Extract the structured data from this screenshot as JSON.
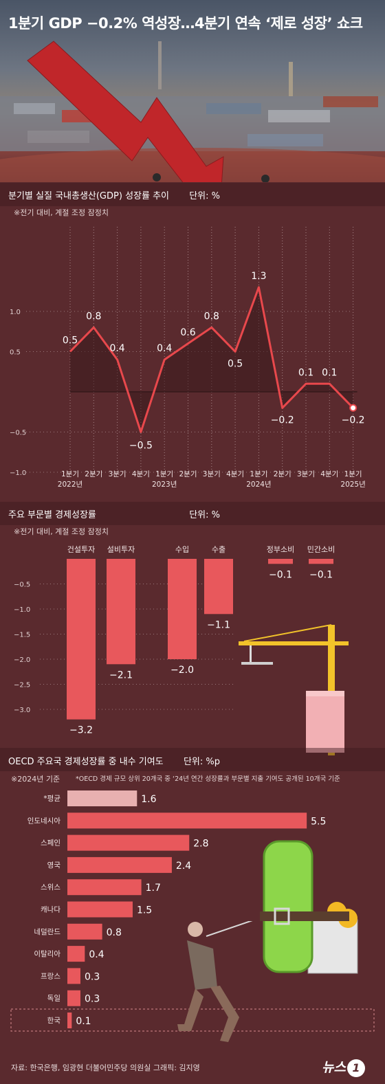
{
  "title": "1분기 GDP −0.2% 역성장…4분기 연속 ‘제로 성장’ 쇼크",
  "colors": {
    "background": "#5a2a2e",
    "line": "#e8484c",
    "bar": "#e8585c",
    "bar_highlight": "#e8b0b0",
    "arrow": "#c0262a"
  },
  "icons": [
    "falling-arrow-icon",
    "tower-crane-icon",
    "money-roll-icon",
    "running-man-icon"
  ],
  "chart_data": [
    {
      "type": "line",
      "title": "분기별 실질 국내총생산(GDP) 성장률 추이",
      "unit": "단위: %",
      "note": "※전기 대비, 계절 조정 잠정치",
      "x": [
        "1분기",
        "2분기",
        "3분기",
        "4분기",
        "1분기",
        "2분기",
        "3분기",
        "4분기",
        "1분기",
        "2분기",
        "3분기",
        "4분기",
        "1분기"
      ],
      "years": [
        {
          "index": 0,
          "label": "2022년"
        },
        {
          "index": 4,
          "label": "2023년"
        },
        {
          "index": 8,
          "label": "2024년"
        },
        {
          "index": 12,
          "label": "2025년"
        }
      ],
      "values": [
        0.5,
        0.8,
        0.4,
        -0.5,
        0.4,
        0.6,
        0.8,
        0.5,
        1.3,
        -0.2,
        0.1,
        0.1,
        -0.2
      ],
      "labels": [
        "0.5",
        "0.8",
        "0.4",
        "−0.5",
        "0.4",
        "0.6",
        "0.8",
        "0.5",
        "1.3",
        "−0.2",
        "0.1",
        "0.1",
        "−0.2"
      ],
      "yticks": [
        {
          "v": 1.0,
          "t": "1.0"
        },
        {
          "v": 0.5,
          "t": "0.5"
        },
        {
          "v": -0.5,
          "t": "−0.5"
        },
        {
          "v": -1.0,
          "t": "−1.0"
        }
      ],
      "ylim": [
        -1.0,
        1.5
      ]
    },
    {
      "type": "bar",
      "title": "주요 부문별 경제성장률",
      "unit": "단위: %",
      "note": "※전기 대비, 계절 조정 잠정치",
      "categories": [
        "건설투자",
        "설비투자",
        "수입",
        "수출",
        "정부소비",
        "민간소비"
      ],
      "values": [
        -3.2,
        -2.1,
        -2.0,
        -1.1,
        -0.1,
        -0.1
      ],
      "labels": [
        "−3.2",
        "−2.1",
        "−2.0",
        "−1.1",
        "−0.1",
        "−0.1"
      ],
      "yticks": [
        {
          "v": -0.5,
          "t": "−0.5"
        },
        {
          "v": -1.0,
          "t": "−1.0"
        },
        {
          "v": -1.5,
          "t": "−1.5"
        },
        {
          "v": -2.0,
          "t": "−2.0"
        },
        {
          "v": -2.5,
          "t": "−2.5"
        },
        {
          "v": -3.0,
          "t": "−3.0"
        }
      ],
      "ylim": [
        -3.4,
        0
      ]
    },
    {
      "type": "bar",
      "orientation": "horizontal",
      "title": "OECD 주요국 경제성장률 중 내수 기여도",
      "unit": "단위: %p",
      "note": "※2024년 기준",
      "subnote": "*OECD 경제 규모 상위 20개국 중 ‘24년 연간 성장률과 부문별 지출 기여도 공개된 10개국 기준",
      "categories": [
        "*평균",
        "인도네시아",
        "스페인",
        "영국",
        "스위스",
        "캐나다",
        "네덜란드",
        "이탈리아",
        "프랑스",
        "독일",
        "한국"
      ],
      "values": [
        1.6,
        5.5,
        2.8,
        2.4,
        1.7,
        1.5,
        0.8,
        0.4,
        0.3,
        0.3,
        0.1
      ],
      "labels": [
        "1.6",
        "5.5",
        "2.8",
        "2.4",
        "1.7",
        "1.5",
        "0.8",
        "0.4",
        "0.3",
        "0.3",
        "0.1"
      ],
      "highlight": "한국",
      "xlim": [
        0,
        5.5
      ]
    }
  ],
  "footer": {
    "source": "자료: 한국은행, 임광현 더불어민주당 의원실   그래픽: 김지영",
    "logo_text": "뉴스",
    "logo_num": "1"
  }
}
